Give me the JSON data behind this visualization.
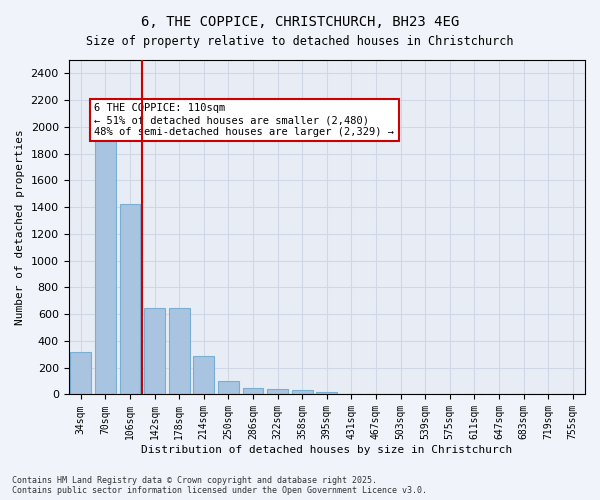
{
  "title1": "6, THE COPPICE, CHRISTCHURCH, BH23 4EG",
  "title2": "Size of property relative to detached houses in Christchurch",
  "xlabel": "Distribution of detached houses by size in Christchurch",
  "ylabel": "Number of detached properties",
  "categories": [
    "34sqm",
    "70sqm",
    "106sqm",
    "142sqm",
    "178sqm",
    "214sqm",
    "250sqm",
    "286sqm",
    "322sqm",
    "358sqm",
    "395sqm",
    "431sqm",
    "467sqm",
    "503sqm",
    "539sqm",
    "575sqm",
    "611sqm",
    "647sqm",
    "683sqm",
    "719sqm",
    "755sqm"
  ],
  "values": [
    320,
    1980,
    1420,
    650,
    650,
    285,
    100,
    50,
    40,
    30,
    15,
    0,
    0,
    0,
    0,
    0,
    0,
    0,
    0,
    0,
    0
  ],
  "bar_color": "#a8c4e0",
  "bar_edge_color": "#7aafd4",
  "vline_x": 2,
  "vline_color": "#cc0000",
  "annotation_text": "6 THE COPPICE: 110sqm\n← 51% of detached houses are smaller (2,480)\n48% of semi-detached houses are larger (2,329) →",
  "annotation_box_color": "#cc0000",
  "annotation_bg": "#ffffff",
  "ylim": [
    0,
    2500
  ],
  "yticks": [
    0,
    200,
    400,
    600,
    800,
    1000,
    1200,
    1400,
    1600,
    1800,
    2000,
    2200,
    2400
  ],
  "grid_color": "#d0d8e8",
  "bg_color": "#e8edf5",
  "footnote": "Contains HM Land Registry data © Crown copyright and database right 2025.\nContains public sector information licensed under the Open Government Licence v3.0."
}
